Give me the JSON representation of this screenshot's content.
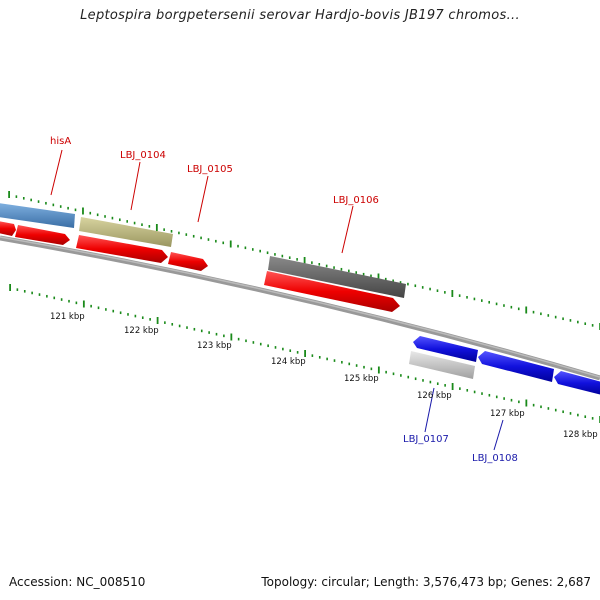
{
  "title": "Leptospira borgpetersenii serovar Hardjo-bovis JB197 chromos...",
  "footer": {
    "accession": "Accession: NC_008510",
    "summary": "Topology: circular; Length: 3,576,473 bp; Genes: 2,687"
  },
  "scale_labels": [
    "121 kbp",
    "122 kbp",
    "123 kbp",
    "124 kbp",
    "125 kbp",
    "126 kbp",
    "127 kbp",
    "128 kbp"
  ],
  "gene_labels": {
    "hisA": "hisA",
    "lbj0104": "LBJ_0104",
    "lbj0105": "LBJ_0105",
    "lbj0106": "LBJ_0106",
    "lbj0107": "LBJ_0107",
    "lbj0108": "LBJ_0108"
  },
  "colors": {
    "cds_forward": "#ee1111",
    "cds_reverse": "#1111dd",
    "cog_blue": "#4a86c0",
    "cog_olive": "#b8b478",
    "cog_gray": "#666666",
    "cog_light": "#c0c0c0",
    "gc_ticks": "#1a8a1a",
    "backbone": "#888888"
  }
}
